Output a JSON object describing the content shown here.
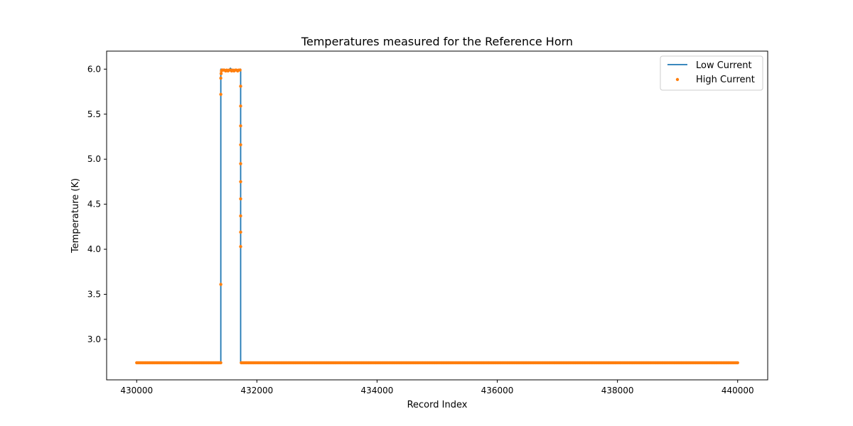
{
  "chart_data": {
    "type": "line",
    "title": "Temperatures measured for the Reference Horn",
    "xlabel": "Record Index",
    "ylabel": "Temperature (K)",
    "xlim": [
      429500,
      440500
    ],
    "ylim": [
      2.55,
      6.2
    ],
    "xticks": [
      430000,
      432000,
      434000,
      436000,
      438000,
      440000
    ],
    "xtick_labels": [
      "430000",
      "432000",
      "434000",
      "436000",
      "438000",
      "440000"
    ],
    "yticks": [
      3.0,
      3.5,
      4.0,
      4.5,
      5.0,
      5.5,
      6.0
    ],
    "ytick_labels": [
      "3.0",
      "3.5",
      "4.0",
      "4.5",
      "5.0",
      "5.5",
      "6.0"
    ],
    "legend": {
      "placement": "top-right"
    },
    "grid": false,
    "series": [
      {
        "name": "Low Current",
        "kind": "line",
        "color": "#1f77b4",
        "x": [
          430000,
          431400,
          431400,
          431410,
          431440,
          431480,
          431520,
          431560,
          431600,
          431640,
          431680,
          431720,
          431730,
          431730,
          440000
        ],
        "y": [
          2.74,
          2.74,
          6.0,
          6.0,
          6.0,
          5.99,
          5.98,
          6.01,
          5.98,
          5.99,
          5.98,
          5.99,
          6.0,
          2.74,
          2.74
        ]
      },
      {
        "name": "High Current",
        "kind": "scatter",
        "color": "#ff7f0e",
        "x": [
          431400,
          431400,
          431400,
          431405,
          431410,
          431420,
          431440,
          431460,
          431480,
          431500,
          431520,
          431540,
          431560,
          431580,
          431600,
          431620,
          431640,
          431660,
          431680,
          431700,
          431720,
          431730,
          431730,
          431730,
          431730,
          431730,
          431730,
          431730,
          431730,
          431730,
          431730
        ],
        "y": [
          3.61,
          5.72,
          5.9,
          5.95,
          5.98,
          5.99,
          5.99,
          5.99,
          5.98,
          5.99,
          5.98,
          5.99,
          5.99,
          5.98,
          5.99,
          5.98,
          5.99,
          5.99,
          5.98,
          5.99,
          5.99,
          5.81,
          5.59,
          5.37,
          5.16,
          4.95,
          4.75,
          4.56,
          4.37,
          4.19,
          4.03
        ],
        "baseline": {
          "y": 2.74,
          "x_from": 430000,
          "x_to": 440000,
          "exclude": [
            431400,
            431730
          ]
        }
      }
    ]
  }
}
